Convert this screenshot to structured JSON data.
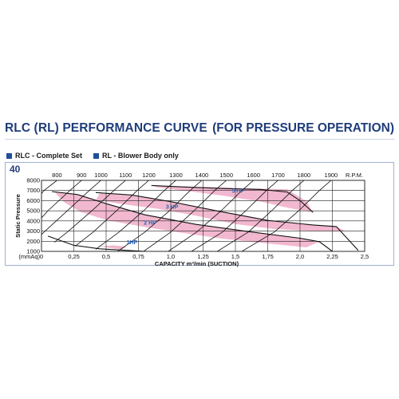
{
  "header": {
    "title": "RLC (RL) PERFORMANCE CURVE",
    "subtitle": "(FOR PRESSURE OPERATION)"
  },
  "legend": [
    {
      "label": "RLC - Complete Set",
      "color": "#1f4f9a"
    },
    {
      "label": "RL - Blower Body only",
      "color": "#1f4f9a"
    }
  ],
  "model_number": "40",
  "chart_data": {
    "type": "line",
    "xlabel": "CAPACITY m³/min (SUCTION)",
    "ylabel": "Static Pressure",
    "yunit_label": "(mmAq)",
    "xlim": [
      0,
      2.5
    ],
    "ylim": [
      1000,
      8000
    ],
    "x_ticks": [
      "0",
      "0,25",
      "0,5",
      "0,75",
      "1,0",
      "1,25",
      "1,5",
      "1,75",
      "2,0",
      "2,25",
      "2,5"
    ],
    "y_ticks": [
      "1000",
      "2000",
      "3000",
      "4000",
      "5000",
      "6000",
      "7000",
      "8000"
    ],
    "rpm_label": "R.P.M.",
    "rpm_lines": [
      {
        "rpm": "800",
        "points": [
          [
            0.12,
            8000
          ],
          [
            0.02,
            7000
          ],
          [
            -0.1,
            5200
          ]
        ]
      },
      {
        "rpm": "900",
        "points": [
          [
            0.31,
            8000
          ],
          [
            0.22,
            7000
          ],
          [
            0.05,
            5000
          ],
          [
            -0.1,
            2900
          ]
        ]
      },
      {
        "rpm": "1000",
        "points": [
          [
            0.46,
            8000
          ],
          [
            0.37,
            7000
          ],
          [
            0.2,
            5000
          ],
          [
            0.02,
            2900
          ],
          [
            -0.05,
            2100
          ]
        ]
      },
      {
        "rpm": "1100",
        "points": [
          [
            0.65,
            8000
          ],
          [
            0.56,
            7000
          ],
          [
            0.39,
            5000
          ],
          [
            0.2,
            2900
          ],
          [
            0.1,
            1900
          ]
        ]
      },
      {
        "rpm": "1200",
        "points": [
          [
            0.83,
            8000
          ],
          [
            0.74,
            7000
          ],
          [
            0.58,
            5000
          ],
          [
            0.4,
            2900
          ],
          [
            0.26,
            1500
          ]
        ]
      },
      {
        "rpm": "1300",
        "points": [
          [
            1.04,
            8000
          ],
          [
            0.95,
            7000
          ],
          [
            0.79,
            5000
          ],
          [
            0.6,
            2900
          ],
          [
            0.42,
            1200
          ]
        ]
      },
      {
        "rpm": "1400",
        "points": [
          [
            1.24,
            8000
          ],
          [
            1.15,
            7000
          ],
          [
            0.99,
            5000
          ],
          [
            0.8,
            2900
          ],
          [
            0.59,
            1000
          ]
        ]
      },
      {
        "rpm": "1500",
        "points": [
          [
            1.43,
            8000
          ],
          [
            1.34,
            7000
          ],
          [
            1.18,
            5000
          ],
          [
            1.0,
            2900
          ],
          [
            0.79,
            1000
          ]
        ]
      },
      {
        "rpm": "1600",
        "points": [
          [
            1.64,
            8000
          ],
          [
            1.55,
            7000
          ],
          [
            1.39,
            5000
          ],
          [
            1.2,
            2900
          ],
          [
            0.98,
            1000
          ]
        ]
      },
      {
        "rpm": "1700",
        "points": [
          [
            1.83,
            8000
          ],
          [
            1.74,
            7000
          ],
          [
            1.58,
            5000
          ],
          [
            1.4,
            2900
          ],
          [
            1.16,
            1000
          ]
        ]
      },
      {
        "rpm": "1800",
        "points": [
          [
            2.03,
            8000
          ],
          [
            1.94,
            7000
          ],
          [
            1.78,
            5000
          ],
          [
            1.6,
            2900
          ],
          [
            1.36,
            1000
          ]
        ]
      },
      {
        "rpm": "1900",
        "points": [
          [
            2.24,
            8000
          ],
          [
            2.15,
            7000
          ],
          [
            1.99,
            5000
          ],
          [
            1.8,
            2900
          ],
          [
            1.55,
            1000
          ]
        ]
      }
    ],
    "hp_bands": [
      {
        "label": "5 HP",
        "label_at": [
          1.52,
          6800
        ],
        "polygon": [
          [
            0.85,
            7500
          ],
          [
            1.9,
            7100
          ],
          [
            2.05,
            5950
          ],
          [
            2.1,
            4850
          ],
          [
            1.9,
            5300
          ],
          [
            1.7,
            5900
          ],
          [
            1.4,
            6500
          ],
          [
            1.1,
            7000
          ],
          [
            0.9,
            7300
          ]
        ]
      },
      {
        "label": "3 HP",
        "label_at": [
          1.01,
          5200
        ],
        "polygon": [
          [
            0.45,
            6700
          ],
          [
            0.7,
            6500
          ],
          [
            1.0,
            5900
          ],
          [
            1.35,
            5000
          ],
          [
            1.75,
            4050
          ],
          [
            2.1,
            3600
          ],
          [
            2.28,
            3450
          ],
          [
            2.35,
            3000
          ],
          [
            2.1,
            3000
          ],
          [
            1.8,
            3200
          ],
          [
            1.5,
            3700
          ],
          [
            1.2,
            4500
          ],
          [
            0.9,
            5200
          ],
          [
            0.6,
            5700
          ],
          [
            0.42,
            6050
          ]
        ]
      },
      {
        "label": "2 HP",
        "label_at": [
          0.84,
          3650
        ],
        "polygon": [
          [
            0.1,
            6850
          ],
          [
            0.28,
            6600
          ],
          [
            0.5,
            5700
          ],
          [
            0.8,
            4600
          ],
          [
            1.2,
            3650
          ],
          [
            1.6,
            2950
          ],
          [
            2.0,
            2300
          ],
          [
            2.15,
            1950
          ],
          [
            2.05,
            1400
          ],
          [
            1.7,
            1850
          ],
          [
            1.4,
            2250
          ],
          [
            1.1,
            2800
          ],
          [
            0.8,
            3400
          ],
          [
            0.5,
            4100
          ],
          [
            0.3,
            4900
          ],
          [
            0.18,
            5800
          ]
        ]
      },
      {
        "label": "1HP",
        "label_at": [
          0.7,
          1700
        ],
        "polygon": [
          [
            0.45,
            1500
          ],
          [
            0.55,
            1300
          ],
          [
            0.62,
            1200
          ],
          [
            0.66,
            1450
          ],
          [
            0.56,
            1600
          ]
        ]
      }
    ],
    "hp_boundaries": [
      {
        "name": "5 HP",
        "points": [
          [
            0.85,
            7500
          ],
          [
            1.1,
            7350
          ],
          [
            1.4,
            7200
          ],
          [
            1.7,
            7100
          ],
          [
            1.9,
            6850
          ],
          [
            2.0,
            6000
          ],
          [
            2.1,
            4850
          ]
        ]
      },
      {
        "name": "3 HP",
        "points": [
          [
            0.42,
            6800
          ],
          [
            0.7,
            6550
          ],
          [
            1.0,
            5900
          ],
          [
            1.35,
            5000
          ],
          [
            1.75,
            4050
          ],
          [
            2.1,
            3600
          ],
          [
            2.28,
            3450
          ],
          [
            2.45,
            1100
          ]
        ]
      },
      {
        "name": "2 HP",
        "points": [
          [
            0.08,
            6900
          ],
          [
            0.28,
            6600
          ],
          [
            0.5,
            5700
          ],
          [
            0.8,
            4600
          ],
          [
            1.2,
            3650
          ],
          [
            1.6,
            2950
          ],
          [
            2.0,
            2300
          ],
          [
            2.15,
            1950
          ],
          [
            2.25,
            1000
          ]
        ]
      },
      {
        "name": "1HP",
        "points": [
          [
            0.05,
            2500
          ],
          [
            0.25,
            1600
          ],
          [
            0.45,
            1250
          ],
          [
            0.65,
            1100
          ],
          [
            0.8,
            1000
          ]
        ]
      }
    ]
  },
  "colors": {
    "pink": "#f2b8cf",
    "pink_edge": "#c95d8b",
    "grid": "#222222",
    "title": "#1f3d7a",
    "hp_label": "#2a63b4"
  }
}
